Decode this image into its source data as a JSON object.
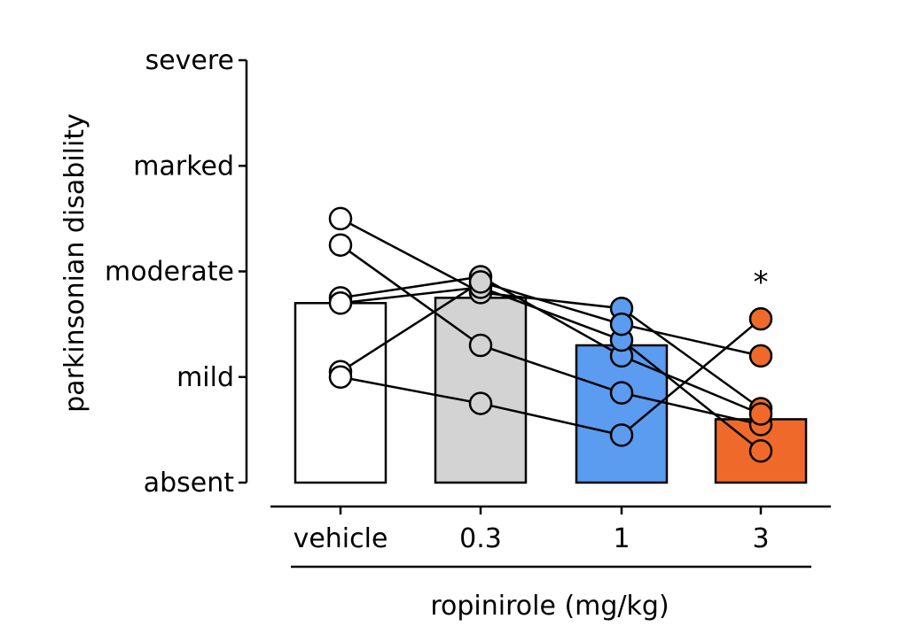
{
  "chart_data": {
    "type": "bar",
    "ylabel": "parkinsonian disability",
    "xlabel": "ropinirole (mg/kg)",
    "ylim": [
      0,
      4
    ],
    "yticks": [
      {
        "value": 0,
        "label": "absent"
      },
      {
        "value": 1,
        "label": "mild"
      },
      {
        "value": 2,
        "label": "moderate"
      },
      {
        "value": 3,
        "label": "marked"
      },
      {
        "value": 4,
        "label": "severe"
      }
    ],
    "categories": [
      "vehicle",
      "0.3",
      "1",
      "3"
    ],
    "bar_values": [
      1.7,
      1.75,
      1.3,
      0.6
    ],
    "bar_colors": [
      "#ffffff",
      "#d3d3d3",
      "#5b9bf0",
      "#ef6a2a"
    ],
    "point_colors": [
      "#ffffff",
      "#d3d3d3",
      "#5b9bf0",
      "#ef6a2a"
    ],
    "subjects": [
      {
        "values": [
          2.5,
          1.8,
          1.65,
          0.7
        ]
      },
      {
        "values": [
          2.25,
          1.3,
          0.85,
          0.55
        ]
      },
      {
        "values": [
          1.75,
          1.95,
          1.2,
          0.65
        ]
      },
      {
        "values": [
          1.7,
          1.85,
          1.35,
          0.3
        ]
      },
      {
        "values": [
          1.05,
          1.9,
          1.5,
          1.2
        ]
      },
      {
        "values": [
          1.0,
          0.75,
          0.45,
          1.55
        ]
      }
    ],
    "significance": [
      {
        "category": "3",
        "label": "*"
      }
    ]
  }
}
